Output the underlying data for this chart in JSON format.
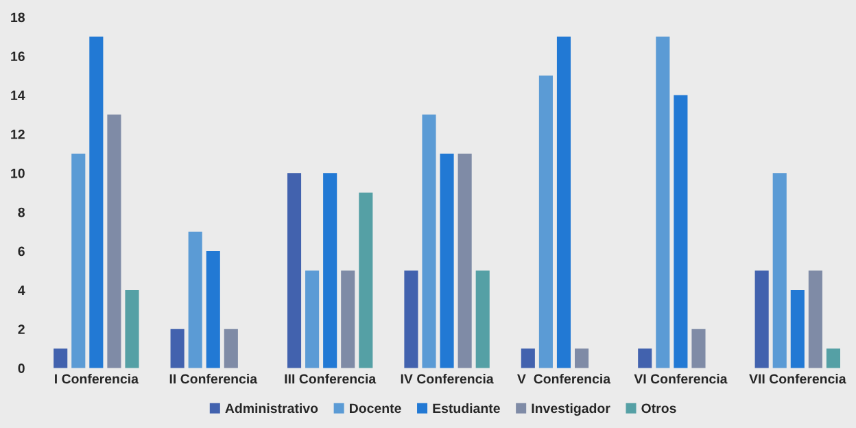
{
  "chart_data": {
    "type": "bar",
    "categories": [
      "I Conferencia",
      "II Conferencia",
      "III Conferencia",
      "IV Conferencia",
      "V  Conferencia",
      "VI Conferencia",
      "VII Conferencia"
    ],
    "series": [
      {
        "name": "Administrativo",
        "color": "#4262ae",
        "values": [
          1,
          2,
          10,
          5,
          1,
          1,
          5
        ]
      },
      {
        "name": "Docente",
        "color": "#5b9bd5",
        "values": [
          11,
          7,
          5,
          13,
          15,
          17,
          10
        ]
      },
      {
        "name": "Estudiante",
        "color": "#2279d4",
        "values": [
          17,
          6,
          10,
          11,
          17,
          14,
          4
        ]
      },
      {
        "name": "Investigador",
        "color": "#7f8ba6",
        "values": [
          13,
          2,
          5,
          11,
          1,
          2,
          5
        ]
      },
      {
        "name": "Otros",
        "color": "#55a0a5",
        "values": [
          4,
          null,
          9,
          5,
          null,
          null,
          1
        ]
      }
    ],
    "ylim": [
      0,
      18
    ],
    "yticks": [
      0,
      2,
      4,
      6,
      8,
      10,
      12,
      14,
      16,
      18
    ],
    "grid": false,
    "legend": "bottom"
  }
}
